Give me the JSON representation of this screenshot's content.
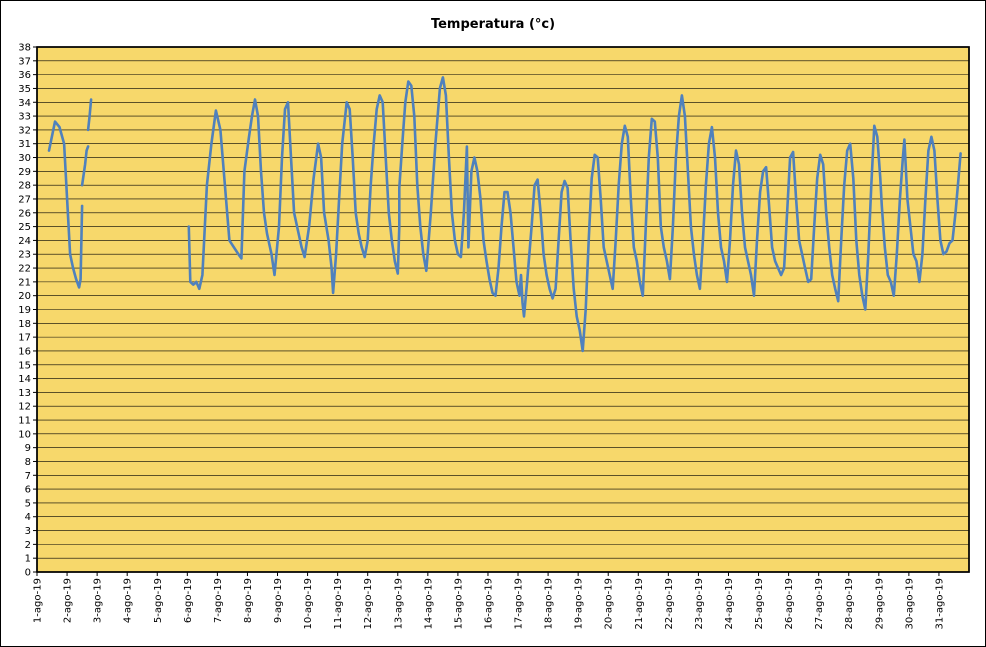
{
  "chart_data": {
    "type": "line",
    "title": "Temperatura (°c)",
    "xlabel": "",
    "ylabel": "",
    "ylim": [
      0,
      38
    ],
    "y_ticks": [
      0,
      1,
      2,
      3,
      4,
      5,
      6,
      7,
      8,
      9,
      10,
      11,
      12,
      13,
      14,
      15,
      16,
      17,
      18,
      19,
      20,
      21,
      22,
      23,
      24,
      25,
      26,
      27,
      28,
      29,
      30,
      31,
      32,
      33,
      34,
      35,
      36,
      37,
      38
    ],
    "x_range_days": [
      1,
      32
    ],
    "x_tick_labels": [
      "1-ago-19",
      "2-ago-19",
      "3-ago-19",
      "4-ago-19",
      "5-ago-19",
      "6-ago-19",
      "7-ago-19",
      "8-ago-19",
      "9-ago-19",
      "10-ago-19",
      "11-ago-19",
      "12-ago-19",
      "13-ago-19",
      "14-ago-19",
      "15-ago-19",
      "16-ago-19",
      "17-ago-19",
      "18-ago-19",
      "19-ago-19",
      "20-ago-19",
      "21-ago-19",
      "22-ago-19",
      "23-ago-19",
      "24-ago-19",
      "25-ago-19",
      "26-ago-19",
      "27-ago-19",
      "28-ago-19",
      "29-ago-19",
      "30-ago-19",
      "31-ago-19"
    ],
    "grid": "horizontal",
    "plot_background": "#f7d86b",
    "line_color": "#4f81bd",
    "series": [
      {
        "segments": [
          [
            [
              1.4,
              30.5
            ],
            [
              1.6,
              32.6
            ],
            [
              1.75,
              32.2
            ],
            [
              1.9,
              31
            ],
            [
              2.0,
              27
            ],
            [
              2.1,
              23
            ],
            [
              2.2,
              22
            ],
            [
              2.3,
              21.2
            ],
            [
              2.4,
              20.6
            ],
            [
              2.45,
              21.2
            ],
            [
              2.5,
              26.5
            ]
          ],
          [
            [
              2.5,
              28
            ],
            [
              2.6,
              29.5
            ],
            [
              2.65,
              30.5
            ],
            [
              2.7,
              30.8
            ]
          ],
          [
            [
              2.7,
              32
            ],
            [
              2.75,
              33
            ],
            [
              2.8,
              34.2
            ]
          ],
          [
            [
              6.05,
              25
            ],
            [
              6.1,
              21
            ],
            [
              6.2,
              20.8
            ],
            [
              6.3,
              21
            ],
            [
              6.4,
              20.5
            ],
            [
              6.5,
              21.5
            ],
            [
              6.65,
              28
            ],
            [
              6.8,
              31
            ],
            [
              6.95,
              33.4
            ],
            [
              7.1,
              32
            ],
            [
              7.25,
              28
            ],
            [
              7.4,
              24
            ],
            [
              7.55,
              23.5
            ],
            [
              7.7,
              23
            ],
            [
              7.8,
              22.7
            ],
            [
              7.9,
              29
            ],
            [
              8.05,
              31.5
            ],
            [
              8.15,
              33
            ],
            [
              8.25,
              34.2
            ],
            [
              8.35,
              33
            ],
            [
              8.45,
              29
            ],
            [
              8.55,
              26
            ],
            [
              8.65,
              24.5
            ],
            [
              8.8,
              23
            ],
            [
              8.9,
              21.5
            ],
            [
              9.05,
              25
            ],
            [
              9.15,
              30
            ],
            [
              9.25,
              33.5
            ],
            [
              9.35,
              34
            ],
            [
              9.45,
              30
            ],
            [
              9.55,
              26
            ],
            [
              9.7,
              24.5
            ],
            [
              9.8,
              23.5
            ],
            [
              9.9,
              22.8
            ],
            [
              10.05,
              25
            ],
            [
              10.2,
              28.5
            ],
            [
              10.35,
              31
            ],
            [
              10.45,
              30
            ],
            [
              10.55,
              26
            ],
            [
              10.7,
              24
            ],
            [
              10.8,
              22
            ],
            [
              10.85,
              20.2
            ],
            [
              10.95,
              23
            ],
            [
              11.05,
              27
            ],
            [
              11.15,
              31
            ],
            [
              11.3,
              34
            ],
            [
              11.4,
              33.5
            ],
            [
              11.5,
              30
            ],
            [
              11.6,
              26
            ],
            [
              11.7,
              24.5
            ],
            [
              11.8,
              23.5
            ],
            [
              11.9,
              22.8
            ],
            [
              12.0,
              24
            ],
            [
              12.1,
              28
            ],
            [
              12.2,
              31
            ],
            [
              12.3,
              33.5
            ],
            [
              12.4,
              34.5
            ],
            [
              12.5,
              34
            ],
            [
              12.6,
              30
            ],
            [
              12.7,
              26
            ],
            [
              12.8,
              24
            ],
            [
              12.9,
              22.5
            ],
            [
              13.0,
              21.6
            ],
            [
              13.05,
              25
            ],
            [
              13.05,
              27.8
            ],
            [
              13.15,
              31
            ],
            [
              13.25,
              34
            ],
            [
              13.35,
              35.5
            ],
            [
              13.45,
              35.2
            ],
            [
              13.55,
              33
            ],
            [
              13.65,
              28
            ],
            [
              13.75,
              25
            ],
            [
              13.85,
              23
            ],
            [
              13.95,
              21.8
            ],
            [
              14.1,
              26
            ],
            [
              14.25,
              31
            ],
            [
              14.4,
              35
            ],
            [
              14.5,
              35.8
            ],
            [
              14.6,
              34.5
            ],
            [
              14.7,
              30
            ],
            [
              14.8,
              26
            ],
            [
              14.9,
              24
            ],
            [
              15.0,
              23
            ],
            [
              15.1,
              22.8
            ],
            [
              15.2,
              26
            ],
            [
              15.3,
              30.8
            ],
            [
              15.35,
              23.5
            ],
            [
              15.45,
              29
            ],
            [
              15.55,
              30
            ],
            [
              15.65,
              29
            ],
            [
              15.75,
              27
            ],
            [
              15.85,
              24
            ],
            [
              15.95,
              22.5
            ],
            [
              16.05,
              21.2
            ],
            [
              16.15,
              20.2
            ],
            [
              16.25,
              20
            ],
            [
              16.35,
              22
            ],
            [
              16.45,
              25
            ],
            [
              16.55,
              27.5
            ],
            [
              16.65,
              27.5
            ],
            [
              16.75,
              26
            ],
            [
              16.85,
              23.5
            ],
            [
              16.95,
              21
            ],
            [
              17.05,
              20
            ],
            [
              17.1,
              21.5
            ],
            [
              17.15,
              19.5
            ],
            [
              17.2,
              18.5
            ],
            [
              17.3,
              21
            ],
            [
              17.45,
              25
            ],
            [
              17.55,
              28
            ],
            [
              17.65,
              28.4
            ],
            [
              17.75,
              26
            ],
            [
              17.85,
              23
            ],
            [
              17.95,
              21.5
            ],
            [
              18.05,
              20.5
            ],
            [
              18.15,
              19.8
            ],
            [
              18.25,
              20.5
            ],
            [
              18.35,
              24
            ],
            [
              18.45,
              27.5
            ],
            [
              18.55,
              28.3
            ],
            [
              18.65,
              27.8
            ],
            [
              18.75,
              24
            ],
            [
              18.85,
              20.5
            ],
            [
              18.95,
              18.5
            ],
            [
              19.05,
              17.5
            ],
            [
              19.15,
              16
            ],
            [
              19.25,
              19
            ],
            [
              19.35,
              24
            ],
            [
              19.45,
              28.5
            ],
            [
              19.55,
              30.2
            ],
            [
              19.65,
              30
            ],
            [
              19.75,
              27
            ],
            [
              19.85,
              23.5
            ],
            [
              19.95,
              22.5
            ],
            [
              20.05,
              21.5
            ],
            [
              20.15,
              20.5
            ],
            [
              20.25,
              24
            ],
            [
              20.35,
              28
            ],
            [
              20.45,
              31
            ],
            [
              20.55,
              32.3
            ],
            [
              20.65,
              31.5
            ],
            [
              20.75,
              27
            ],
            [
              20.85,
              23.5
            ],
            [
              20.95,
              22.5
            ],
            [
              21.05,
              21
            ],
            [
              21.15,
              20
            ],
            [
              21.25,
              25
            ],
            [
              21.35,
              30
            ],
            [
              21.45,
              32.8
            ],
            [
              21.55,
              32.6
            ],
            [
              21.65,
              30
            ],
            [
              21.75,
              25
            ],
            [
              21.85,
              23.5
            ],
            [
              21.95,
              22.5
            ],
            [
              22.05,
              21.2
            ],
            [
              22.15,
              25
            ],
            [
              22.25,
              30
            ],
            [
              22.35,
              33
            ],
            [
              22.45,
              34.5
            ],
            [
              22.55,
              33
            ],
            [
              22.65,
              29
            ],
            [
              22.75,
              25
            ],
            [
              22.85,
              23
            ],
            [
              22.95,
              21.5
            ],
            [
              23.05,
              20.5
            ],
            [
              23.15,
              24
            ],
            [
              23.25,
              28
            ],
            [
              23.35,
              31
            ],
            [
              23.45,
              32.2
            ],
            [
              23.55,
              30
            ],
            [
              23.65,
              26
            ],
            [
              23.75,
              23.5
            ],
            [
              23.85,
              22.5
            ],
            [
              23.95,
              21
            ],
            [
              24.05,
              24
            ],
            [
              24.15,
              28
            ],
            [
              24.25,
              30.5
            ],
            [
              24.35,
              29.5
            ],
            [
              24.45,
              26
            ],
            [
              24.55,
              23.5
            ],
            [
              24.65,
              22.5
            ],
            [
              24.75,
              21.5
            ],
            [
              24.85,
              20
            ],
            [
              24.95,
              24
            ],
            [
              25.05,
              27.5
            ],
            [
              25.15,
              29
            ],
            [
              25.25,
              29.3
            ],
            [
              25.35,
              26.5
            ],
            [
              25.45,
              23.5
            ],
            [
              25.55,
              22.5
            ],
            [
              25.65,
              22
            ],
            [
              25.75,
              21.5
            ],
            [
              25.85,
              22
            ],
            [
              25.95,
              26
            ],
            [
              26.05,
              30
            ],
            [
              26.15,
              30.4
            ],
            [
              26.25,
              27
            ],
            [
              26.35,
              24
            ],
            [
              26.45,
              23
            ],
            [
              26.55,
              22
            ],
            [
              26.65,
              21
            ],
            [
              26.75,
              21.2
            ],
            [
              26.85,
              25
            ],
            [
              26.95,
              28.5
            ],
            [
              27.05,
              30.2
            ],
            [
              27.15,
              29.5
            ],
            [
              27.25,
              26
            ],
            [
              27.35,
              23.5
            ],
            [
              27.45,
              21.5
            ],
            [
              27.55,
              20.5
            ],
            [
              27.65,
              19.6
            ],
            [
              27.75,
              24
            ],
            [
              27.85,
              28
            ],
            [
              27.95,
              30.5
            ],
            [
              28.05,
              31
            ],
            [
              28.15,
              28.5
            ],
            [
              28.25,
              24
            ],
            [
              28.35,
              21.5
            ],
            [
              28.45,
              20
            ],
            [
              28.55,
              19
            ],
            [
              28.65,
              23
            ],
            [
              28.75,
              28
            ],
            [
              28.85,
              32.3
            ],
            [
              28.95,
              31.5
            ],
            [
              29.05,
              28.5
            ],
            [
              29.1,
              26.5
            ],
            [
              29.2,
              23.5
            ],
            [
              29.3,
              21.5
            ],
            [
              29.4,
              21
            ],
            [
              29.5,
              20
            ],
            [
              29.6,
              23
            ],
            [
              29.7,
              27
            ],
            [
              29.8,
              30
            ],
            [
              29.85,
              31.3
            ],
            [
              29.95,
              27
            ],
            [
              30.05,
              25
            ],
            [
              30.15,
              23
            ],
            [
              30.25,
              22.5
            ],
            [
              30.35,
              21
            ],
            [
              30.45,
              23
            ],
            [
              30.55,
              27
            ],
            [
              30.65,
              30.5
            ],
            [
              30.75,
              31.5
            ],
            [
              30.85,
              30.5
            ],
            [
              30.95,
              27
            ],
            [
              31.05,
              24
            ],
            [
              31.15,
              23
            ],
            [
              31.25,
              23.2
            ],
            [
              31.35,
              23.8
            ],
            [
              31.45,
              24
            ],
            [
              31.55,
              26
            ],
            [
              31.65,
              28.5
            ],
            [
              31.72,
              30.3
            ]
          ]
        ]
      }
    ]
  }
}
